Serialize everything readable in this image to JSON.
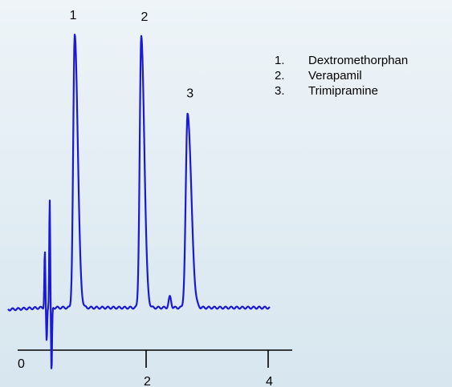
{
  "chart_data": {
    "type": "line",
    "x_axis": {
      "range": [
        -0.4,
        4.6
      ],
      "ticks": [
        {
          "value": 0,
          "label": "0"
        },
        {
          "value": 2,
          "label": "2"
        },
        {
          "value": 4,
          "label": "4"
        }
      ]
    },
    "series": [
      {
        "color": "#1a1ad6",
        "peaks": [
          {
            "id": "1",
            "label": "1",
            "retention": 0.83,
            "height": 1.0,
            "width": 0.025,
            "tail": 0.05
          },
          {
            "id": "2",
            "label": "2",
            "retention": 1.92,
            "height": 0.994,
            "width": 0.025,
            "tail": 0.05
          },
          {
            "id": "3",
            "label": "3",
            "retention": 2.68,
            "height": 0.713,
            "width": 0.03,
            "tail": 0.06
          }
        ],
        "minor_peaks": [
          {
            "retention": 2.39,
            "height": 0.04
          }
        ],
        "void_disturbance": [
          {
            "retention": 0.34,
            "height": 0.21
          },
          {
            "retention": 0.42,
            "height": 0.4
          },
          {
            "retention": 0.37,
            "height": -0.125
          },
          {
            "retention": 0.45,
            "height": -0.24
          }
        ]
      }
    ],
    "legend": {
      "placement": "top-right",
      "entries": [
        {
          "num": "1.",
          "name": "Dextromethorphan"
        },
        {
          "num": "2.",
          "name": "Verapamil"
        },
        {
          "num": "3.",
          "name": "Trimipramine"
        }
      ]
    },
    "grid": false
  }
}
